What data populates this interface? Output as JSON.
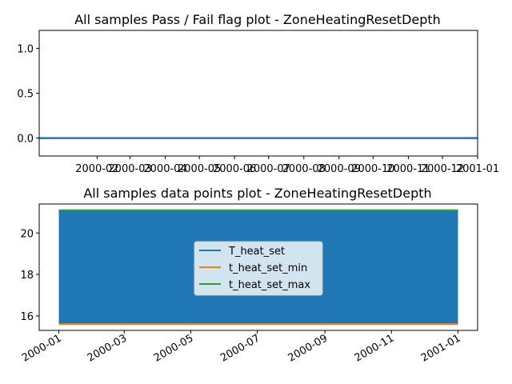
{
  "chart_data": [
    {
      "type": "line",
      "title": "All samples Pass / Fail flag plot - ZoneHeatingResetDepth",
      "xlim": [
        "2000-01-01",
        "2001-01-01"
      ],
      "ylim": [
        -0.2,
        1.2
      ],
      "yticks": [
        0.0,
        0.5,
        1.0
      ],
      "ytick_labels": [
        "0.0",
        "0.5",
        "1.0"
      ],
      "xticks": [
        "2000-02-01",
        "2000-03-01",
        "2000-04-01",
        "2000-05-01",
        "2000-06-01",
        "2000-07-01",
        "2000-08-01",
        "2000-09-01",
        "2000-10-01",
        "2000-11-01",
        "2000-12-01",
        "2001-01-01"
      ],
      "xtick_labels": [
        "2000-02",
        "2000-03",
        "2000-04",
        "2000-05",
        "2000-06",
        "2000-07",
        "2000-08",
        "2000-09",
        "2000-10",
        "2000-11",
        "2000-12",
        "2001-01"
      ],
      "series": [
        {
          "x": [
            "2000-01-01",
            "2001-01-01"
          ],
          "values": [
            0,
            0
          ],
          "color": "#1f77b4"
        }
      ],
      "grid": false
    },
    {
      "type": "line",
      "title": "All samples data points plot - ZoneHeatingResetDepth",
      "xlim": [
        "2000-01-01",
        "2001-01-01"
      ],
      "ylim": [
        15.3,
        21.4
      ],
      "yticks": [
        16,
        18,
        20
      ],
      "ytick_labels": [
        "16",
        "18",
        "20"
      ],
      "xticks": [
        "2000-01-01",
        "2000-03-01",
        "2000-05-01",
        "2000-07-01",
        "2000-09-01",
        "2000-11-01",
        "2001-01-01"
      ],
      "xtick_labels": [
        "2000-01",
        "2000-03",
        "2000-05",
        "2000-07",
        "2000-09",
        "2000-11",
        "2001-01"
      ],
      "series": [
        {
          "name": "T_heat_set",
          "color": "#1f77b4",
          "oscillates_between": [
            15.6,
            21.1
          ]
        },
        {
          "name": "t_heat_set_min",
          "color": "#ff7f0e",
          "values": [
            15.6,
            15.6
          ]
        },
        {
          "name": "t_heat_set_max",
          "color": "#2ca02c",
          "values": [
            21.1,
            21.1
          ]
        }
      ],
      "legend_position": "center",
      "grid": false
    }
  ]
}
